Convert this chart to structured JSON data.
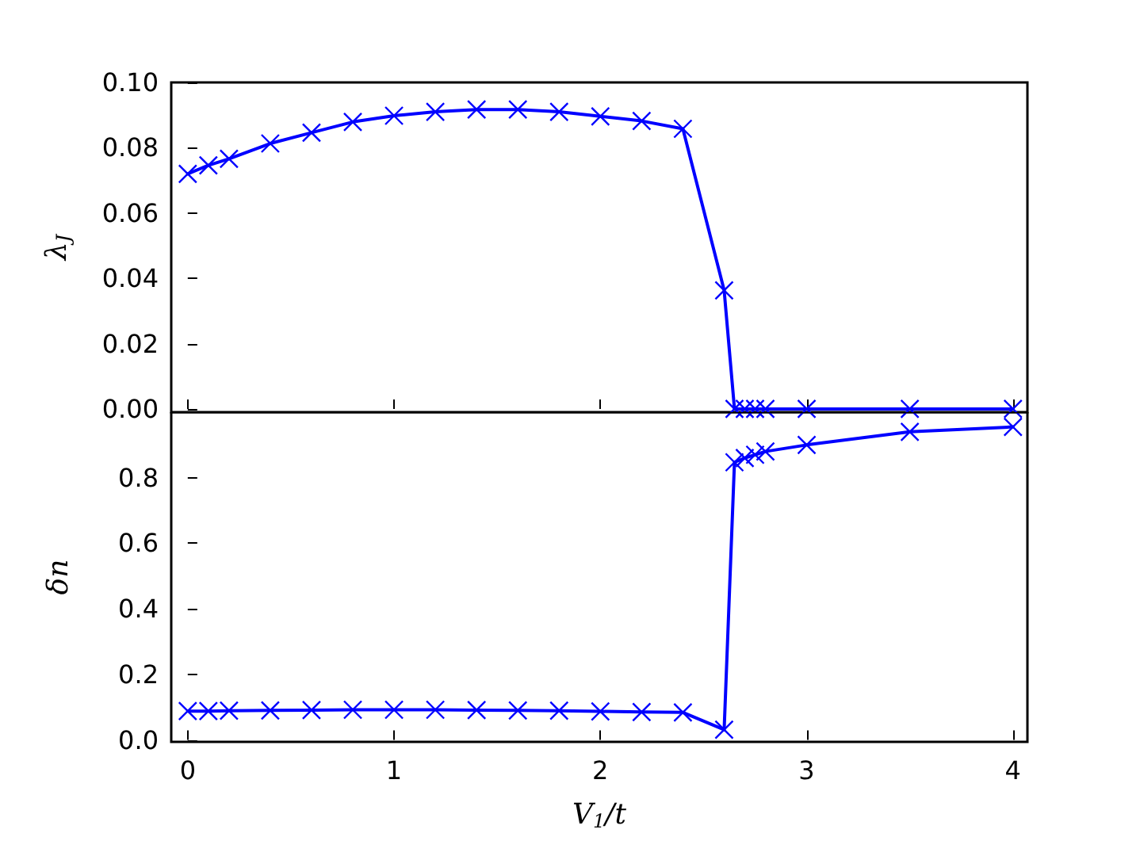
{
  "chart_data": [
    {
      "type": "line",
      "ylabel": "λ$_{J}$",
      "x": [
        0,
        0.1,
        0.2,
        0.4,
        0.6,
        0.8,
        1.0,
        1.2,
        1.4,
        1.6,
        1.8,
        2.0,
        2.2,
        2.4,
        2.6,
        2.65,
        2.7,
        2.75,
        2.8,
        3.0,
        3.5,
        4.0
      ],
      "series": [
        {
          "color": "#0000ff",
          "values": [
            0.072,
            0.0746,
            0.0766,
            0.0813,
            0.0846,
            0.0879,
            0.0898,
            0.091,
            0.0917,
            0.0917,
            0.091,
            0.0896,
            0.0882,
            0.0858,
            0.0363,
            0,
            0,
            0,
            0,
            0,
            0,
            0
          ]
        }
      ],
      "xlim": [
        -0.08,
        4.07
      ],
      "xticks": [
        0,
        1,
        2,
        3,
        4
      ],
      "ylim": [
        -0.001,
        0.1
      ],
      "yticks": [
        {
          "value": 0,
          "label": "0.00"
        },
        {
          "value": 0.02,
          "label": "0.02"
        },
        {
          "value": 0.04,
          "label": "0.04"
        },
        {
          "value": 0.06,
          "label": "0.06"
        },
        {
          "value": 0.08,
          "label": "0.08"
        },
        {
          "value": 0.1,
          "label": "0.10"
        }
      ],
      "tick_labels": "y",
      "marker": "cross",
      "line_style": "solid",
      "grid": false
    },
    {
      "type": "line",
      "xlabel": "V$_{1}$/t",
      "ylabel": "δn",
      "x": [
        0,
        0.1,
        0.2,
        0.4,
        0.6,
        0.8,
        1.0,
        1.2,
        1.4,
        1.6,
        1.8,
        2.0,
        2.2,
        2.4,
        2.6,
        2.65,
        2.7,
        2.75,
        2.8,
        3.0,
        3.5,
        4.0
      ],
      "series": [
        {
          "color": "#0000ff",
          "values": [
            0.088,
            0.088,
            0.089,
            0.09,
            0.091,
            0.092,
            0.092,
            0.092,
            0.091,
            0.09,
            0.089,
            0.087,
            0.085,
            0.084,
            0.031,
            0.847,
            0.86,
            0.87,
            0.88,
            0.9,
            0.94,
            0.955
          ]
        }
      ],
      "xlim": [
        -0.08,
        4.07
      ],
      "xticks": [
        0,
        1,
        2,
        3,
        4
      ],
      "ylim": [
        -0.006,
        1.0
      ],
      "yticks": [
        {
          "value": 0,
          "label": "0.0"
        },
        {
          "value": 0.2,
          "label": "0.2"
        },
        {
          "value": 0.4,
          "label": "0.4"
        },
        {
          "value": 0.6,
          "label": "0.6"
        },
        {
          "value": 0.8,
          "label": "0.8"
        }
      ],
      "marker": "cross",
      "line_style": "solid",
      "grid": false
    }
  ]
}
